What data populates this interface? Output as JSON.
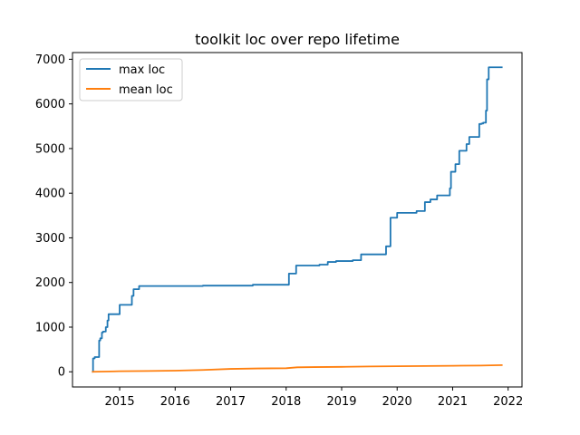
{
  "chart_data": {
    "type": "line",
    "title": "toolkit loc over repo lifetime",
    "xlabel": "",
    "ylabel": "",
    "xlim": [
      2014.15,
      2022.25
    ],
    "ylim": [
      -340,
      7150
    ],
    "x_ticks": [
      2015,
      2016,
      2017,
      2018,
      2019,
      2020,
      2021,
      2022
    ],
    "x_tick_labels": [
      "2015",
      "2016",
      "2017",
      "2018",
      "2019",
      "2020",
      "2021",
      "2022"
    ],
    "y_ticks": [
      0,
      1000,
      2000,
      3000,
      4000,
      5000,
      6000,
      7000
    ],
    "y_tick_labels": [
      "0",
      "1000",
      "2000",
      "3000",
      "4000",
      "5000",
      "6000",
      "7000"
    ],
    "grid": false,
    "legend_position": "top-left",
    "series": [
      {
        "name": "max loc",
        "color": "#1f77b4",
        "step": true,
        "x": [
          2014.5,
          2014.52,
          2014.55,
          2014.6,
          2014.63,
          2014.65,
          2014.68,
          2014.7,
          2014.75,
          2014.78,
          2014.8,
          2014.85,
          2014.92,
          2015.0,
          2015.2,
          2015.22,
          2015.25,
          2015.35,
          2016.3,
          2016.5,
          2017.0,
          2017.4,
          2017.95,
          2018.05,
          2018.18,
          2018.6,
          2018.75,
          2018.9,
          2019.2,
          2019.35,
          2019.72,
          2019.8,
          2019.88,
          2020.0,
          2020.35,
          2020.5,
          2020.6,
          2020.72,
          2020.95,
          2020.97,
          2021.05,
          2021.12,
          2021.25,
          2021.3,
          2021.48,
          2021.52,
          2021.55,
          2021.6,
          2021.62,
          2021.65,
          2021.9
        ],
        "values": [
          0,
          300,
          330,
          330,
          700,
          750,
          880,
          900,
          1000,
          1150,
          1290,
          1290,
          1290,
          1500,
          1500,
          1700,
          1850,
          1920,
          1920,
          1930,
          1930,
          1950,
          1950,
          2200,
          2380,
          2400,
          2460,
          2480,
          2500,
          2630,
          2630,
          2810,
          3450,
          3560,
          3600,
          3800,
          3860,
          3950,
          4110,
          4480,
          4650,
          4950,
          5100,
          5260,
          5550,
          5560,
          5580,
          5850,
          6550,
          6820,
          6820
        ]
      },
      {
        "name": "mean loc",
        "color": "#ff7f0e",
        "step": false,
        "x": [
          2014.5,
          2015.0,
          2015.5,
          2016.0,
          2016.5,
          2017.0,
          2017.5,
          2018.0,
          2018.2,
          2018.5,
          2019.0,
          2019.5,
          2020.0,
          2020.5,
          2021.0,
          2021.5,
          2021.9
        ],
        "values": [
          0,
          12,
          18,
          25,
          40,
          65,
          75,
          80,
          100,
          105,
          110,
          120,
          125,
          130,
          135,
          140,
          150
        ]
      }
    ]
  }
}
